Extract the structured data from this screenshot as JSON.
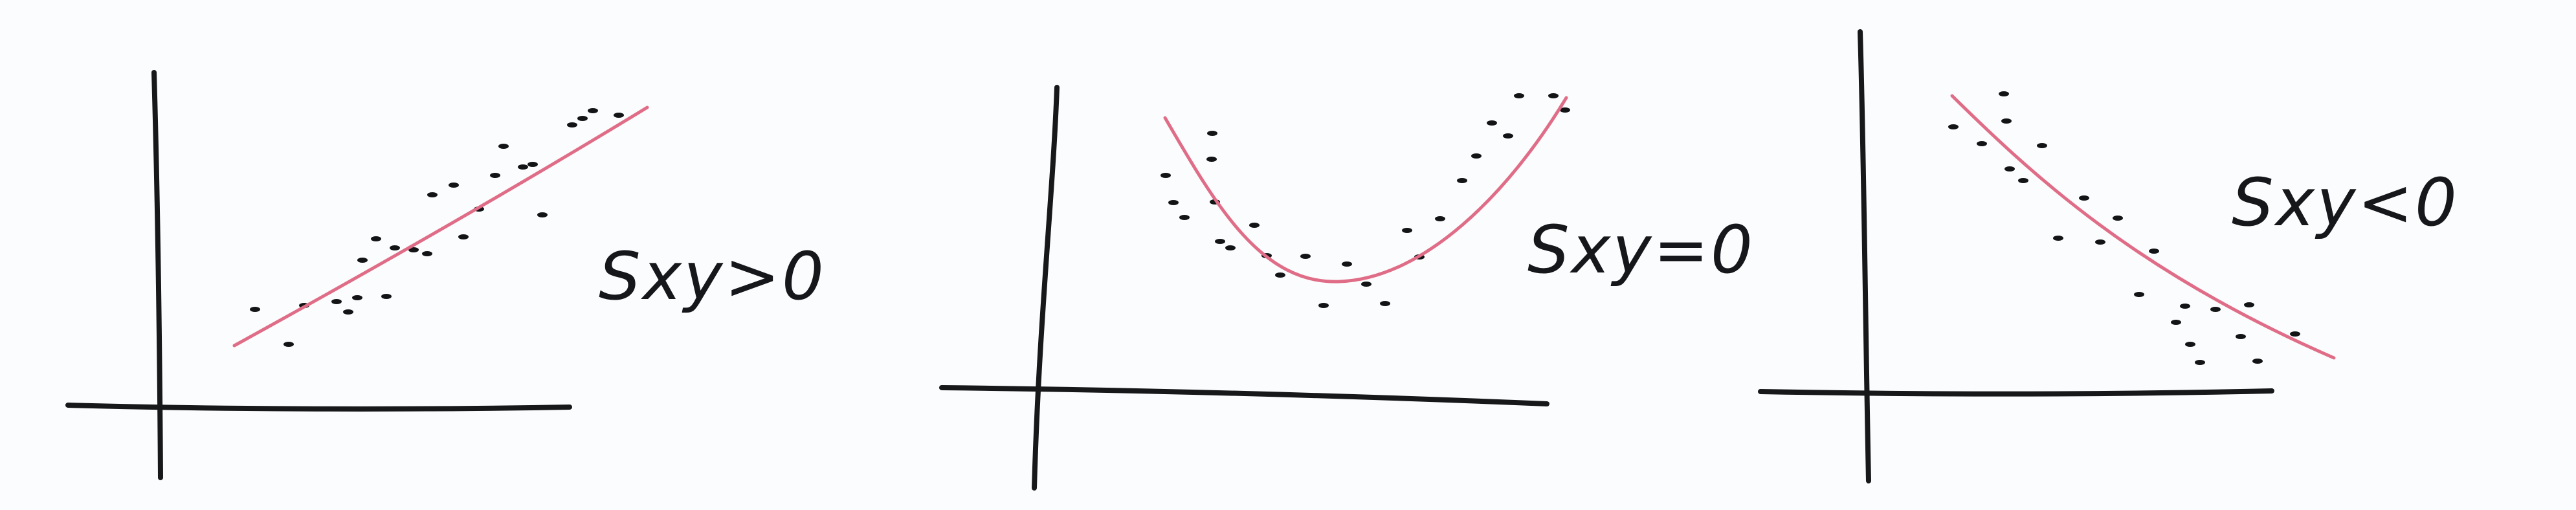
{
  "board": {
    "background": "#fbfcfd",
    "ink_color": "#15171a",
    "trend_color": "#e06d87"
  },
  "plots": [
    {
      "label": "Sxy>0",
      "relationship": "positive linear",
      "trend_shape": "rising line"
    },
    {
      "label": "Sxy=0",
      "relationship": "U-shaped, no linear association",
      "trend_shape": "parabola"
    },
    {
      "label": "Sxy<0",
      "relationship": "negative linear",
      "trend_shape": "falling line"
    }
  ]
}
